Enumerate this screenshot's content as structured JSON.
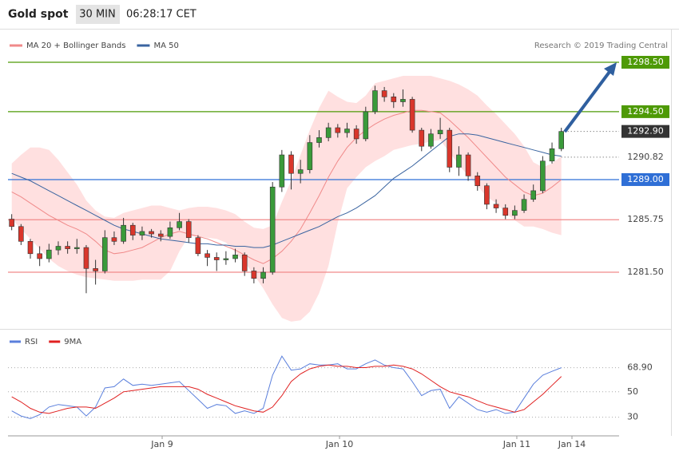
{
  "header": {
    "title": "Gold spot",
    "interval": "30 MIN",
    "time": "06:28:17 CET"
  },
  "chart_data": [
    {
      "type": "candlestick",
      "credit": "Research © 2019 Trading Central",
      "x": [
        0,
        1,
        2,
        3,
        4,
        5,
        6,
        7,
        8,
        9,
        10,
        11,
        12,
        13,
        14,
        15,
        16,
        17,
        18,
        19,
        20,
        21,
        22,
        23,
        24,
        25,
        26,
        27,
        28,
        29,
        30,
        31,
        32,
        33,
        34,
        35,
        36,
        37,
        38,
        39,
        40,
        41,
        42,
        43,
        44,
        45,
        46,
        47,
        48,
        49,
        50,
        51,
        52,
        53,
        54,
        55,
        56,
        57,
        58,
        59
      ],
      "xlim": [
        -0.4,
        65.2
      ],
      "xticks": [
        {
          "value": 16.15,
          "label": "Jan 9"
        },
        {
          "value": 35.19,
          "label": "Jan 10"
        },
        {
          "value": 54.22,
          "label": "Jan 11"
        },
        {
          "value": 60.14,
          "label": "Jan 14"
        }
      ],
      "ylim": [
        1277.04,
        1301.15
      ],
      "up_color": "#3a9a3a",
      "down_color": "#d9362b",
      "open": [
        1285.8,
        1285.2,
        1284.0,
        1283.0,
        1282.6,
        1283.3,
        1283.6,
        1283.4,
        1283.5,
        1281.8,
        1281.6,
        1284.3,
        1284.0,
        1285.3,
        1284.5,
        1284.8,
        1284.6,
        1284.4,
        1285.1,
        1285.6,
        1284.3,
        1283.0,
        1282.7,
        1282.5,
        1282.6,
        1282.9,
        1281.6,
        1281.0,
        1281.5,
        1288.4,
        1291.0,
        1289.5,
        1289.8,
        1292.0,
        1292.4,
        1293.2,
        1292.8,
        1293.1,
        1292.3,
        1294.5,
        1296.2,
        1295.7,
        1295.3,
        1295.5,
        1293.0,
        1291.7,
        1292.7,
        1293.0,
        1290.0,
        1291.0,
        1289.3,
        1288.5,
        1287.0,
        1286.7,
        1286.1,
        1286.5,
        1287.4,
        1288.1,
        1290.5,
        1291.5
      ],
      "high": [
        1286.2,
        1285.4,
        1284.2,
        1283.6,
        1283.8,
        1284.0,
        1284.0,
        1284.2,
        1283.7,
        1282.5,
        1284.9,
        1284.8,
        1285.9,
        1285.5,
        1285.2,
        1285.0,
        1284.9,
        1285.6,
        1286.3,
        1285.8,
        1284.5,
        1283.3,
        1283.1,
        1283.2,
        1283.4,
        1283.1,
        1281.9,
        1281.9,
        1288.8,
        1291.4,
        1291.3,
        1290.6,
        1292.6,
        1293.0,
        1293.6,
        1293.5,
        1293.6,
        1293.4,
        1294.9,
        1296.6,
        1296.5,
        1296.0,
        1296.3,
        1295.7,
        1293.2,
        1293.1,
        1294.0,
        1293.2,
        1291.7,
        1291.2,
        1289.6,
        1288.7,
        1287.4,
        1287.0,
        1286.9,
        1287.8,
        1288.6,
        1290.9,
        1292.0,
        1293.2
      ],
      "low": [
        1284.9,
        1283.7,
        1282.6,
        1282.0,
        1282.3,
        1282.9,
        1283.0,
        1283.0,
        1279.8,
        1280.5,
        1281.4,
        1283.7,
        1283.8,
        1284.1,
        1284.1,
        1284.3,
        1284.0,
        1284.2,
        1284.9,
        1283.9,
        1282.8,
        1282.0,
        1281.6,
        1282.1,
        1282.3,
        1281.2,
        1280.6,
        1280.6,
        1281.3,
        1288.0,
        1288.2,
        1288.7,
        1289.5,
        1291.6,
        1292.1,
        1292.4,
        1292.4,
        1291.9,
        1292.1,
        1294.3,
        1295.3,
        1294.8,
        1294.9,
        1292.8,
        1291.3,
        1291.5,
        1292.3,
        1289.6,
        1289.3,
        1288.9,
        1288.1,
        1286.6,
        1286.3,
        1285.8,
        1285.8,
        1286.3,
        1287.2,
        1287.9,
        1290.3,
        1291.3
      ],
      "close": [
        1285.2,
        1284.0,
        1283.0,
        1282.6,
        1283.3,
        1283.6,
        1283.4,
        1283.5,
        1281.8,
        1281.6,
        1284.3,
        1284.0,
        1285.3,
        1284.5,
        1284.8,
        1284.6,
        1284.4,
        1285.1,
        1285.6,
        1284.3,
        1283.0,
        1282.7,
        1282.5,
        1282.6,
        1282.9,
        1281.6,
        1281.0,
        1281.5,
        1288.4,
        1291.0,
        1289.5,
        1289.8,
        1292.0,
        1292.4,
        1293.2,
        1292.8,
        1293.1,
        1292.3,
        1294.5,
        1296.2,
        1295.7,
        1295.3,
        1295.5,
        1293.0,
        1291.7,
        1292.7,
        1293.0,
        1290.0,
        1291.0,
        1289.3,
        1288.5,
        1287.0,
        1286.7,
        1286.1,
        1286.5,
        1287.4,
        1288.1,
        1290.5,
        1291.5,
        1292.9
      ],
      "series": [
        {
          "name": "MA 20 + Bollinger Bands",
          "color": "#f08a8a",
          "band_color": "#ffe0e0",
          "values": [
            1288.0,
            1287.6,
            1287.1,
            1286.6,
            1286.1,
            1285.7,
            1285.3,
            1285.0,
            1284.6,
            1284.0,
            1283.3,
            1283.0,
            1283.1,
            1283.3,
            1283.5,
            1283.9,
            1284.3,
            1284.6,
            1284.8,
            1284.6,
            1284.4,
            1284.2,
            1283.9,
            1283.6,
            1283.3,
            1282.9,
            1282.5,
            1282.2,
            1282.6,
            1283.2,
            1284.0,
            1285.0,
            1286.3,
            1287.7,
            1289.2,
            1290.5,
            1291.6,
            1292.4,
            1293.0,
            1293.5,
            1293.9,
            1294.2,
            1294.4,
            1294.6,
            1294.6,
            1294.5,
            1294.4,
            1293.8,
            1293.1,
            1292.4,
            1291.6,
            1290.8,
            1290.0,
            1289.2,
            1288.6,
            1288.0,
            1287.7,
            1287.9,
            1288.4,
            1289.0
          ],
          "upper": [
            1290.3,
            1291.0,
            1291.6,
            1291.6,
            1291.4,
            1290.6,
            1289.6,
            1288.6,
            1287.3,
            1286.5,
            1286.0,
            1285.9,
            1286.3,
            1286.5,
            1286.7,
            1286.9,
            1286.9,
            1286.7,
            1286.5,
            1286.7,
            1286.8,
            1286.8,
            1286.7,
            1286.5,
            1286.2,
            1285.6,
            1285.1,
            1285.0,
            1285.3,
            1287.2,
            1288.9,
            1291.0,
            1293.0,
            1294.8,
            1296.2,
            1295.7,
            1295.3,
            1295.2,
            1295.8,
            1296.8,
            1297.0,
            1297.2,
            1297.4,
            1297.4,
            1297.4,
            1297.4,
            1297.2,
            1297.0,
            1296.7,
            1296.3,
            1295.8,
            1295.0,
            1294.3,
            1293.5,
            1292.7,
            1291.7,
            1290.4,
            1290.0,
            1290.3,
            1290.9
          ],
          "lower": [
            1285.8,
            1285.0,
            1284.2,
            1283.4,
            1282.6,
            1282.0,
            1281.6,
            1281.3,
            1281.1,
            1281.0,
            1280.9,
            1280.8,
            1280.8,
            1280.8,
            1280.9,
            1280.9,
            1280.9,
            1281.6,
            1283.2,
            1284.4,
            1284.4,
            1284.3,
            1284.2,
            1283.9,
            1283.1,
            1282.3,
            1281.3,
            1280.2,
            1278.9,
            1277.8,
            1277.5,
            1277.6,
            1278.3,
            1279.8,
            1282.0,
            1285.5,
            1288.3,
            1289.2,
            1290.0,
            1290.5,
            1290.9,
            1291.4,
            1291.6,
            1291.8,
            1291.9,
            1292.1,
            1292.2,
            1291.2,
            1290.2,
            1289.3,
            1288.5,
            1287.6,
            1287.1,
            1286.3,
            1285.7,
            1285.2,
            1285.2,
            1285.0,
            1284.7,
            1284.5
          ]
        },
        {
          "name": "MA 50",
          "color": "#3a64a0",
          "values": [
            1289.5,
            1289.2,
            1288.9,
            1288.5,
            1288.1,
            1287.7,
            1287.3,
            1286.9,
            1286.5,
            1286.1,
            1285.7,
            1285.3,
            1285.0,
            1284.8,
            1284.6,
            1284.4,
            1284.2,
            1284.1,
            1284.0,
            1283.9,
            1283.8,
            1283.8,
            1283.7,
            1283.7,
            1283.6,
            1283.6,
            1283.5,
            1283.5,
            1283.7,
            1284.0,
            1284.3,
            1284.6,
            1284.9,
            1285.2,
            1285.6,
            1286.0,
            1286.3,
            1286.7,
            1287.2,
            1287.7,
            1288.4,
            1289.1,
            1289.6,
            1290.1,
            1290.7,
            1291.3,
            1291.9,
            1292.5,
            1292.7,
            1292.7,
            1292.6,
            1292.4,
            1292.2,
            1292.0,
            1291.8,
            1291.6,
            1291.4,
            1291.2,
            1291.0,
            1290.9
          ]
        }
      ],
      "levels": [
        {
          "value": 1298.5,
          "label": "1298.50",
          "color": "#4e9a06",
          "style": "solid",
          "box": "#4e9a06",
          "text_color": "#ffffff"
        },
        {
          "value": 1294.5,
          "label": "1294.50",
          "color": "#4e9a06",
          "style": "solid",
          "box": "#4e9a06",
          "text_color": "#ffffff"
        },
        {
          "value": 1292.9,
          "label": "1292.90",
          "color": "#555555",
          "style": "dotted",
          "box": "#333333",
          "text_color": "#ffffff"
        },
        {
          "value": 1290.82,
          "label": "1290.82",
          "color": "#555555",
          "style": "dotted",
          "box": "#ffffff",
          "text_color": "#444444"
        },
        {
          "value": 1289.0,
          "label": "1289.00",
          "color": "#2f6fd6",
          "style": "solid",
          "box": "#2f6fd6",
          "text_color": "#ffffff"
        },
        {
          "value": 1285.75,
          "label": "1285.75",
          "color": "#f08a8a",
          "style": "solid",
          "box": "#ffffff",
          "text_color": "#444444"
        },
        {
          "value": 1281.5,
          "label": "1281.50",
          "color": "#f08a8a",
          "style": "solid",
          "box": "#ffffff",
          "text_color": "#444444"
        }
      ]
    },
    {
      "type": "line",
      "ylim": [
        16,
        97.5
      ],
      "yticks": [
        30,
        50
      ],
      "series": [
        {
          "name": "RSI",
          "color": "#5a7fdc",
          "values": [
            35,
            31,
            29,
            32,
            38,
            40,
            39,
            38,
            31,
            38,
            53,
            54,
            60,
            55,
            56,
            55,
            56,
            57,
            58,
            51,
            44,
            37,
            40,
            39,
            33,
            35,
            33,
            37,
            63,
            78,
            67,
            68,
            72,
            71,
            71,
            72,
            68,
            68,
            72,
            75,
            71,
            69,
            68,
            58,
            47,
            51,
            52,
            37,
            46,
            41,
            36,
            34,
            36,
            33,
            34,
            45,
            56,
            63,
            66,
            68.9
          ]
        },
        {
          "name": "9MA",
          "color": "#e02020",
          "values": [
            46,
            42,
            37,
            34,
            33,
            35,
            37,
            38,
            38,
            37,
            41,
            45,
            50,
            51,
            52,
            53,
            54,
            54,
            54,
            54,
            52,
            48,
            45,
            42,
            39,
            37,
            35,
            34,
            38,
            47,
            58,
            64,
            68,
            70,
            71,
            70,
            70,
            69,
            69,
            70,
            70,
            71,
            70,
            68,
            64,
            59,
            54,
            50,
            48,
            46,
            43,
            40,
            38,
            36,
            34,
            36,
            42,
            48,
            55,
            62
          ]
        }
      ],
      "levels": [
        {
          "value": 68.9,
          "label": "68.90"
        }
      ]
    }
  ]
}
